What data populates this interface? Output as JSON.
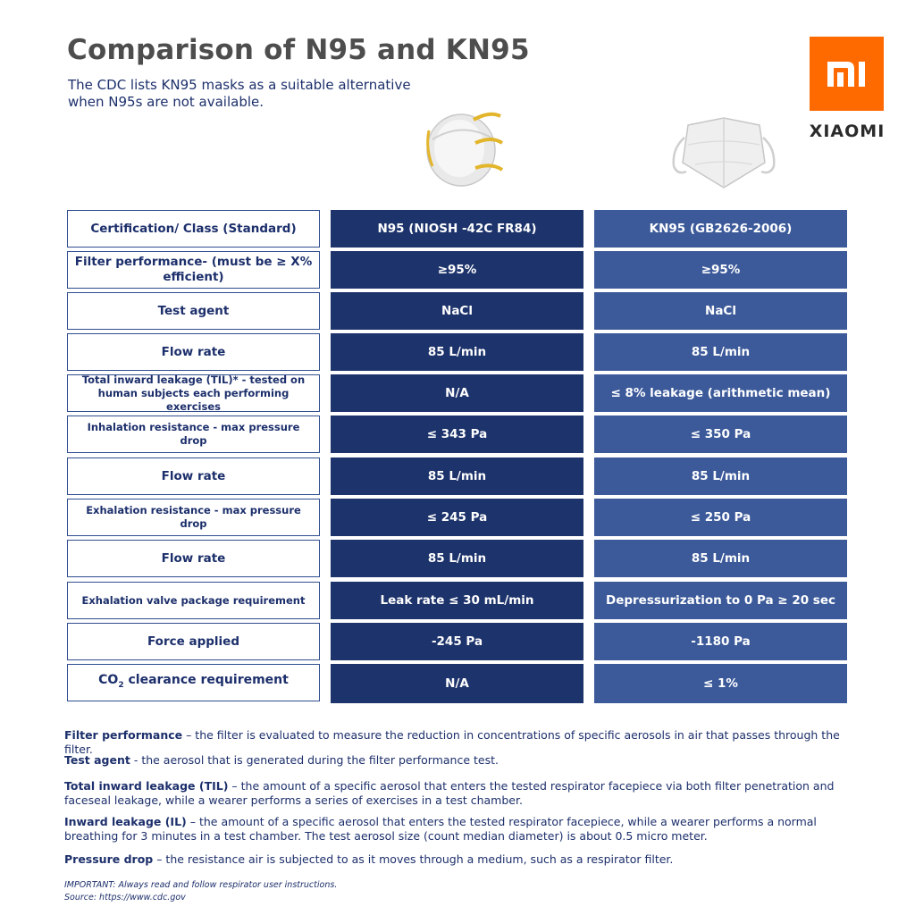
{
  "header": {
    "title": "Comparison of N95 and KN95",
    "subtitle_line1": "The CDC lists KN95 masks as a suitable alternative",
    "subtitle_line2": "when N95s are not available."
  },
  "brand": {
    "logo_text": "mi",
    "wordmark": "XIAOMI",
    "logo_color": "#ff6a00"
  },
  "table": {
    "header": {
      "label": "Certification/ Class (Standard)",
      "n95": "N95 (NIOSH -42C FR84)",
      "kn95": "KN95 (GB2626-2006)"
    },
    "rows": [
      {
        "label": "Filter performance- (must be ≥ X% efficient)",
        "n95": "≥95%",
        "kn95": "≥95%"
      },
      {
        "label": "Test agent",
        "n95": "NaCl",
        "kn95": "NaCl"
      },
      {
        "label": "Flow rate",
        "n95": "85 L/min",
        "kn95": "85 L/min"
      },
      {
        "label": "Total inward leakage (TIL)* - tested on human subjects each performing exercises",
        "n95": "N/A",
        "kn95": "≤ 8% leakage (arithmetic mean)"
      },
      {
        "label": "Inhalation resistance - max pressure drop",
        "n95": "≤ 343 Pa",
        "kn95": "≤ 350 Pa"
      },
      {
        "label": "Flow rate",
        "n95": "85 L/min",
        "kn95": "85 L/min"
      },
      {
        "label": "Exhalation resistance - max pressure drop",
        "n95": "≤ 245 Pa",
        "kn95": "≤ 250 Pa"
      },
      {
        "label": "Flow rate",
        "n95": "85 L/min",
        "kn95": "85 L/min"
      },
      {
        "label": "Exhalation valve package requirement",
        "n95": "Leak rate ≤ 30 mL/min",
        "kn95": "Depressurization to 0 Pa ≥ 20 sec"
      },
      {
        "label": "Force applied",
        "n95": "-245 Pa",
        "kn95": "-1180 Pa"
      },
      {
        "label_prefix": "CO",
        "label_sub": "2",
        "label_suffix": "clearance requirement",
        "n95": "N/A",
        "kn95": "≤ 1%"
      }
    ]
  },
  "definitions": [
    {
      "term": "Filter performance",
      "text": " – the filter is evaluated to measure the reduction in concentrations of specific aerosols in air that passes through the filter."
    },
    {
      "term": "Test agent",
      "text": " - the aerosol that is generated during the filter performance test."
    },
    {
      "term": "Total inward leakage (TIL)",
      "text": " – the amount of a specific aerosol that enters the tested respirator facepiece via both filter penetration and faceseal leakage, while a wearer performs a series of exercises in a test chamber."
    },
    {
      "term": "Inward leakage (IL)",
      "text": " – the amount of a specific aerosol that enters the tested respirator facepiece, while a wearer performs a normal breathing for 3 minutes in a test chamber. The test aerosol size (count median diameter) is about 0.5 micro meter."
    },
    {
      "term": "Pressure drop",
      "text": " – the resistance air is subjected to as it moves through a medium, such as a respirator filter."
    }
  ],
  "footer": {
    "important": "IMPORTANT: Always read and follow respirator user instructions.",
    "source": "Source: https://www.cdc.gov"
  },
  "colors": {
    "n95_column": "#1d336b",
    "kn95_column": "#3c5a9a",
    "text": "#1c2f6b"
  }
}
